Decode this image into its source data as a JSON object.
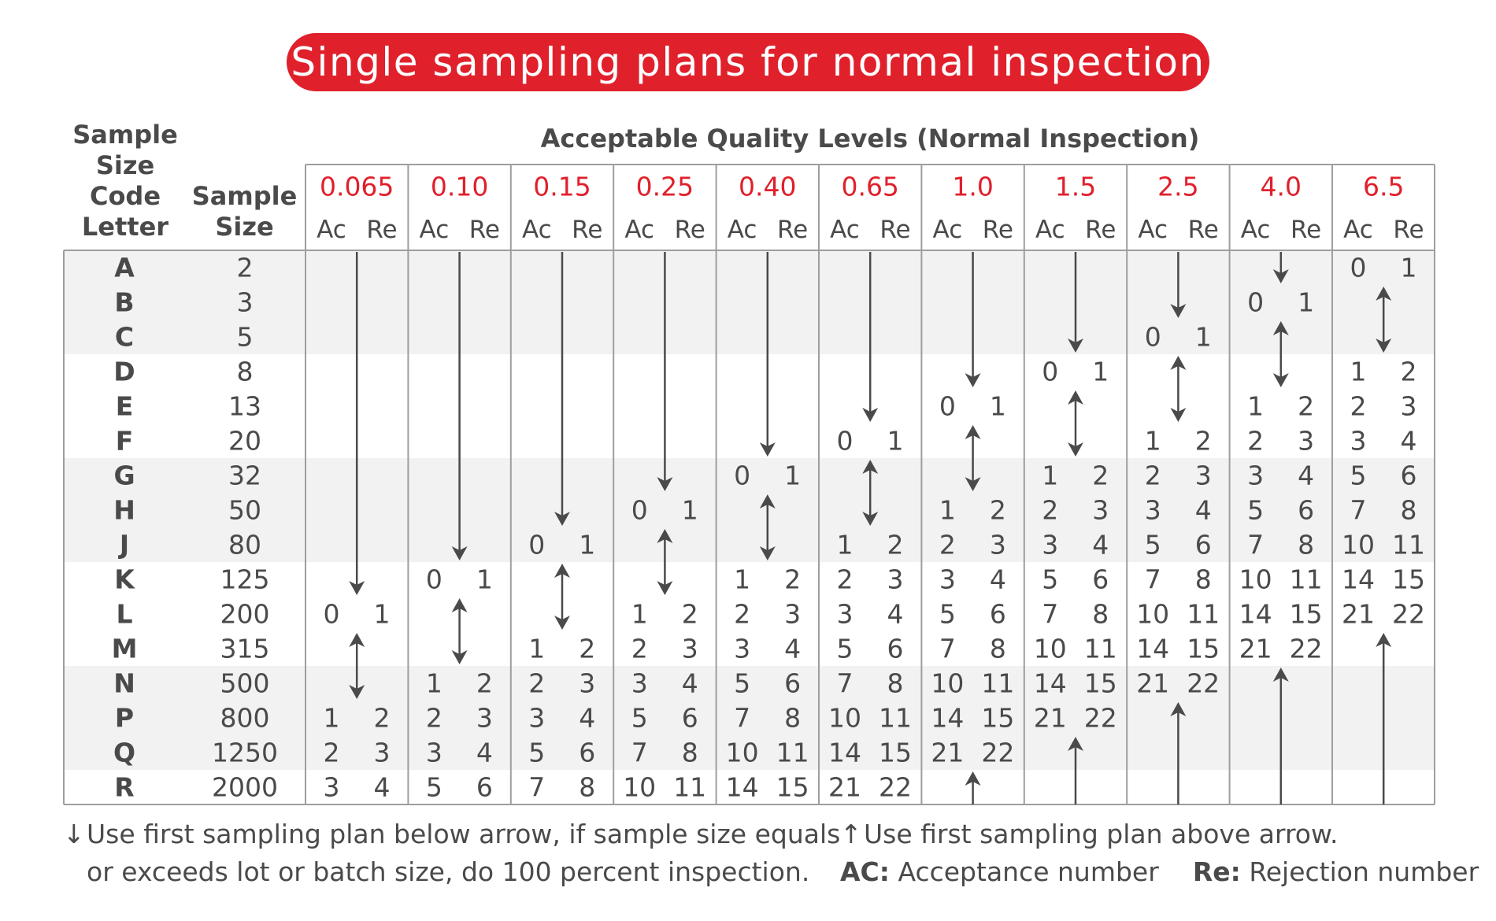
{
  "title": "Single sampling plans for normal inspection",
  "headers": {
    "code_letter": [
      "Sample",
      "Size",
      "Code",
      "Letter"
    ],
    "sample_size": [
      "Sample",
      "Size"
    ],
    "aql": "Acceptable Quality Levels (Normal Inspection)",
    "ac": "Ac",
    "re": "Re"
  },
  "colors": {
    "accent": "#e0202b",
    "text": "#4a4a4a",
    "band": "#f2f2f2",
    "grid": "#9e9e9e"
  },
  "aql_levels": [
    "0.065",
    "0.10",
    "0.15",
    "0.25",
    "0.40",
    "0.65",
    "1.0",
    "1.5",
    "2.5",
    "4.0",
    "6.5"
  ],
  "rows": [
    {
      "letter": "A",
      "size": "2"
    },
    {
      "letter": "B",
      "size": "3"
    },
    {
      "letter": "C",
      "size": "5"
    },
    {
      "letter": "D",
      "size": "8"
    },
    {
      "letter": "E",
      "size": "13"
    },
    {
      "letter": "F",
      "size": "20"
    },
    {
      "letter": "G",
      "size": "32"
    },
    {
      "letter": "H",
      "size": "50"
    },
    {
      "letter": "J",
      "size": "80"
    },
    {
      "letter": "K",
      "size": "125"
    },
    {
      "letter": "L",
      "size": "200"
    },
    {
      "letter": "M",
      "size": "315"
    },
    {
      "letter": "N",
      "size": "500"
    },
    {
      "letter": "P",
      "size": "800"
    },
    {
      "letter": "Q",
      "size": "1250"
    },
    {
      "letter": "R",
      "size": "2000"
    }
  ],
  "plans": [
    {
      "aql": "0.065",
      "plans": [
        {
          "row": "L",
          "ac": "0",
          "re": "1"
        },
        {
          "row": "P",
          "ac": "1",
          "re": "2"
        },
        {
          "row": "Q",
          "ac": "2",
          "re": "3"
        },
        {
          "row": "R",
          "ac": "3",
          "re": "4"
        }
      ],
      "arrows": [
        {
          "dir": "down",
          "from": "A",
          "to": "K"
        },
        {
          "dir": "updown",
          "from": "M",
          "to": "N"
        }
      ]
    },
    {
      "aql": "0.10",
      "plans": [
        {
          "row": "K",
          "ac": "0",
          "re": "1"
        },
        {
          "row": "N",
          "ac": "1",
          "re": "2"
        },
        {
          "row": "P",
          "ac": "2",
          "re": "3"
        },
        {
          "row": "Q",
          "ac": "3",
          "re": "4"
        },
        {
          "row": "R",
          "ac": "5",
          "re": "6"
        }
      ],
      "arrows": [
        {
          "dir": "down",
          "from": "A",
          "to": "J"
        },
        {
          "dir": "updown",
          "from": "L",
          "to": "M"
        }
      ]
    },
    {
      "aql": "0.15",
      "plans": [
        {
          "row": "J",
          "ac": "0",
          "re": "1"
        },
        {
          "row": "M",
          "ac": "1",
          "re": "2"
        },
        {
          "row": "N",
          "ac": "2",
          "re": "3"
        },
        {
          "row": "P",
          "ac": "3",
          "re": "4"
        },
        {
          "row": "Q",
          "ac": "5",
          "re": "6"
        },
        {
          "row": "R",
          "ac": "7",
          "re": "8"
        }
      ],
      "arrows": [
        {
          "dir": "down",
          "from": "A",
          "to": "H"
        },
        {
          "dir": "updown",
          "from": "K",
          "to": "L"
        }
      ]
    },
    {
      "aql": "0.25",
      "plans": [
        {
          "row": "H",
          "ac": "0",
          "re": "1"
        },
        {
          "row": "L",
          "ac": "1",
          "re": "2"
        },
        {
          "row": "M",
          "ac": "2",
          "re": "3"
        },
        {
          "row": "N",
          "ac": "3",
          "re": "4"
        },
        {
          "row": "P",
          "ac": "5",
          "re": "6"
        },
        {
          "row": "Q",
          "ac": "7",
          "re": "8"
        },
        {
          "row": "R",
          "ac": "10",
          "re": "11"
        }
      ],
      "arrows": [
        {
          "dir": "down",
          "from": "A",
          "to": "G"
        },
        {
          "dir": "updown",
          "from": "J",
          "to": "K"
        }
      ]
    },
    {
      "aql": "0.40",
      "plans": [
        {
          "row": "G",
          "ac": "0",
          "re": "1"
        },
        {
          "row": "K",
          "ac": "1",
          "re": "2"
        },
        {
          "row": "L",
          "ac": "2",
          "re": "3"
        },
        {
          "row": "M",
          "ac": "3",
          "re": "4"
        },
        {
          "row": "N",
          "ac": "5",
          "re": "6"
        },
        {
          "row": "P",
          "ac": "7",
          "re": "8"
        },
        {
          "row": "Q",
          "ac": "10",
          "re": "11"
        },
        {
          "row": "R",
          "ac": "14",
          "re": "15"
        }
      ],
      "arrows": [
        {
          "dir": "down",
          "from": "A",
          "to": "F"
        },
        {
          "dir": "updown",
          "from": "H",
          "to": "J"
        }
      ]
    },
    {
      "aql": "0.65",
      "plans": [
        {
          "row": "F",
          "ac": "0",
          "re": "1"
        },
        {
          "row": "J",
          "ac": "1",
          "re": "2"
        },
        {
          "row": "K",
          "ac": "2",
          "re": "3"
        },
        {
          "row": "L",
          "ac": "3",
          "re": "4"
        },
        {
          "row": "M",
          "ac": "5",
          "re": "6"
        },
        {
          "row": "N",
          "ac": "7",
          "re": "8"
        },
        {
          "row": "P",
          "ac": "10",
          "re": "11"
        },
        {
          "row": "Q",
          "ac": "14",
          "re": "15"
        },
        {
          "row": "R",
          "ac": "21",
          "re": "22"
        }
      ],
      "arrows": [
        {
          "dir": "down",
          "from": "A",
          "to": "E"
        },
        {
          "dir": "updown",
          "from": "G",
          "to": "H"
        }
      ]
    },
    {
      "aql": "1.0",
      "plans": [
        {
          "row": "E",
          "ac": "0",
          "re": "1"
        },
        {
          "row": "H",
          "ac": "1",
          "re": "2"
        },
        {
          "row": "J",
          "ac": "2",
          "re": "3"
        },
        {
          "row": "K",
          "ac": "3",
          "re": "4"
        },
        {
          "row": "L",
          "ac": "5",
          "re": "6"
        },
        {
          "row": "M",
          "ac": "7",
          "re": "8"
        },
        {
          "row": "N",
          "ac": "10",
          "re": "11"
        },
        {
          "row": "P",
          "ac": "14",
          "re": "15"
        },
        {
          "row": "Q",
          "ac": "21",
          "re": "22"
        }
      ],
      "arrows": [
        {
          "dir": "down",
          "from": "A",
          "to": "D"
        },
        {
          "dir": "updown",
          "from": "F",
          "to": "G"
        },
        {
          "dir": "up",
          "from": "R",
          "to": "R"
        }
      ]
    },
    {
      "aql": "1.5",
      "plans": [
        {
          "row": "D",
          "ac": "0",
          "re": "1"
        },
        {
          "row": "G",
          "ac": "1",
          "re": "2"
        },
        {
          "row": "H",
          "ac": "2",
          "re": "3"
        },
        {
          "row": "J",
          "ac": "3",
          "re": "4"
        },
        {
          "row": "K",
          "ac": "5",
          "re": "6"
        },
        {
          "row": "L",
          "ac": "7",
          "re": "8"
        },
        {
          "row": "M",
          "ac": "10",
          "re": "11"
        },
        {
          "row": "N",
          "ac": "14",
          "re": "15"
        },
        {
          "row": "P",
          "ac": "21",
          "re": "22"
        }
      ],
      "arrows": [
        {
          "dir": "down",
          "from": "A",
          "to": "C"
        },
        {
          "dir": "updown",
          "from": "E",
          "to": "F"
        },
        {
          "dir": "up",
          "from": "Q",
          "to": "R"
        }
      ]
    },
    {
      "aql": "2.5",
      "plans": [
        {
          "row": "C",
          "ac": "0",
          "re": "1"
        },
        {
          "row": "F",
          "ac": "1",
          "re": "2"
        },
        {
          "row": "G",
          "ac": "2",
          "re": "3"
        },
        {
          "row": "H",
          "ac": "3",
          "re": "4"
        },
        {
          "row": "J",
          "ac": "5",
          "re": "6"
        },
        {
          "row": "K",
          "ac": "7",
          "re": "8"
        },
        {
          "row": "L",
          "ac": "10",
          "re": "11"
        },
        {
          "row": "M",
          "ac": "14",
          "re": "15"
        },
        {
          "row": "N",
          "ac": "21",
          "re": "22"
        }
      ],
      "arrows": [
        {
          "dir": "down",
          "from": "A",
          "to": "B"
        },
        {
          "dir": "updown",
          "from": "D",
          "to": "E"
        },
        {
          "dir": "up",
          "from": "P",
          "to": "R"
        }
      ]
    },
    {
      "aql": "4.0",
      "plans": [
        {
          "row": "B",
          "ac": "0",
          "re": "1"
        },
        {
          "row": "E",
          "ac": "1",
          "re": "2"
        },
        {
          "row": "F",
          "ac": "2",
          "re": "3"
        },
        {
          "row": "G",
          "ac": "3",
          "re": "4"
        },
        {
          "row": "H",
          "ac": "5",
          "re": "6"
        },
        {
          "row": "J",
          "ac": "7",
          "re": "8"
        },
        {
          "row": "K",
          "ac": "10",
          "re": "11"
        },
        {
          "row": "L",
          "ac": "14",
          "re": "15"
        },
        {
          "row": "M",
          "ac": "21",
          "re": "22"
        }
      ],
      "arrows": [
        {
          "dir": "down",
          "from": "A",
          "to": "A"
        },
        {
          "dir": "updown",
          "from": "C",
          "to": "D"
        },
        {
          "dir": "up",
          "from": "N",
          "to": "R"
        }
      ]
    },
    {
      "aql": "6.5",
      "plans": [
        {
          "row": "A",
          "ac": "0",
          "re": "1"
        },
        {
          "row": "D",
          "ac": "1",
          "re": "2"
        },
        {
          "row": "E",
          "ac": "2",
          "re": "3"
        },
        {
          "row": "F",
          "ac": "3",
          "re": "4"
        },
        {
          "row": "G",
          "ac": "5",
          "re": "6"
        },
        {
          "row": "H",
          "ac": "7",
          "re": "8"
        },
        {
          "row": "J",
          "ac": "10",
          "re": "11"
        },
        {
          "row": "K",
          "ac": "14",
          "re": "15"
        },
        {
          "row": "L",
          "ac": "21",
          "re": "22"
        }
      ],
      "arrows": [
        {
          "dir": "updown",
          "from": "B",
          "to": "C"
        },
        {
          "dir": "up",
          "from": "M",
          "to": "R"
        }
      ]
    }
  ],
  "legend": {
    "down_icon": "↓",
    "down_line1": "Use first sampling plan below arrow, if sample size equals",
    "down_line2": "or exceeds lot or batch size, do 100 percent inspection.",
    "up_icon": "↑",
    "up_line1": "Use first sampling plan above arrow.",
    "ac_label": "AC:",
    "ac_text": "Acceptance number",
    "re_label": "Re:",
    "re_text": "Rejection number"
  }
}
